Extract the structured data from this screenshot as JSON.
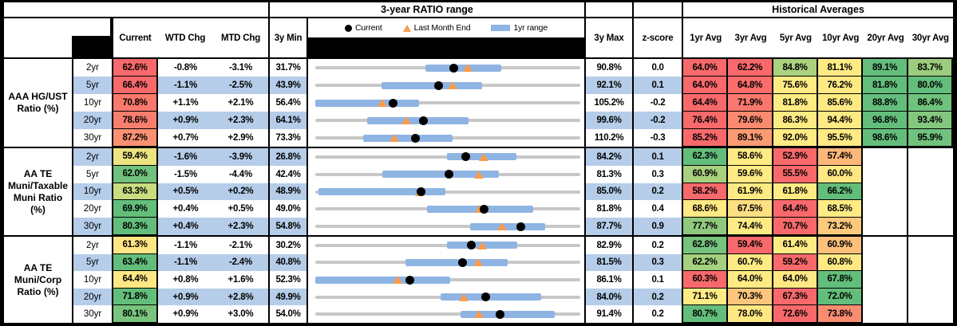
{
  "header": {
    "range_title": "3-year RATIO range",
    "hist_title": "Historical Averages",
    "col_current": "Current",
    "col_wtd": "WTD Chg",
    "col_mtd": "MTD Chg",
    "col_min": "3y Min",
    "col_max": "3y Max",
    "col_z": "z-score",
    "avg_cols": [
      "1yr Avg",
      "3yr Avg",
      "5yr Avg",
      "10yr Avg",
      "20yr Avg",
      "30yr Avg"
    ]
  },
  "legend": {
    "current": "Current",
    "last_month": "Last Month End",
    "range": "1yr range"
  },
  "colors": {
    "row_alt": "#B5CDE9",
    "row_plain": "#FFFFFF",
    "bar_1yr": "#8EB4E3",
    "track": "#C7C7C7",
    "triangle": "#F79C4F",
    "dot": "#000000",
    "scale_red": "#F8696B",
    "scale_yellow": "#FFEB84",
    "scale_green": "#63BE7B"
  },
  "chart_data": {
    "type": "bullet-range",
    "title": "3-year RATIO range",
    "legend": [
      "Current",
      "Last Month End",
      "1yr range"
    ],
    "x_unit": "ratio %",
    "axis_rule": "each row spans from its 3y Min to its 3y Max",
    "groups": [
      {
        "name": "AAA HG/UST Ratio (%)",
        "name_lines": [
          "AAA HG/UST",
          "Ratio (%)"
        ],
        "rows": [
          {
            "tenor": "2yr",
            "current": 62.6,
            "current_bg": "#F8696B",
            "wtd_chg": -0.8,
            "mtd_chg": -3.1,
            "min_3y": 31.7,
            "max_3y": 90.8,
            "z_score": 0.0,
            "last_month_end": 65.7,
            "range_1yr": [
              56.3,
              73.2
            ],
            "avgs": [
              64.0,
              62.2,
              84.8,
              81.1,
              89.1,
              83.7
            ],
            "avg_bgs": [
              "#F8696B",
              "#F8696B",
              "#ABD27F",
              "#FFEB84",
              "#63BE7B",
              "#9CCC7E"
            ]
          },
          {
            "tenor": "5yr",
            "current": 66.4,
            "current_bg": "#F8696B",
            "wtd_chg": -1.1,
            "mtd_chg": -2.5,
            "min_3y": 43.9,
            "max_3y": 92.1,
            "z_score": 0.1,
            "last_month_end": 68.9,
            "range_1yr": [
              56.0,
              74.3
            ],
            "avgs": [
              64.0,
              64.8,
              75.6,
              76.2,
              81.8,
              80.0
            ],
            "avg_bgs": [
              "#F8696B",
              "#F96D6C",
              "#FFEB84",
              "#FFE983",
              "#63BE7B",
              "#63BE7B"
            ]
          },
          {
            "tenor": "10yr",
            "current": 70.8,
            "current_bg": "#F9796D",
            "wtd_chg": 1.1,
            "mtd_chg": 2.1,
            "min_3y": 56.4,
            "max_3y": 105.2,
            "z_score": -0.2,
            "last_month_end": 68.7,
            "range_1yr": [
              56.4,
              75.5
            ],
            "avgs": [
              64.4,
              71.9,
              81.8,
              85.6,
              88.8,
              86.4
            ],
            "avg_bgs": [
              "#F8696B",
              "#F9786D",
              "#FFEB84",
              "#FFE983",
              "#63BE7B",
              "#6EC27C"
            ]
          },
          {
            "tenor": "20yr",
            "current": 78.6,
            "current_bg": "#F87E6E",
            "wtd_chg": 0.9,
            "mtd_chg": 2.3,
            "min_3y": 64.1,
            "max_3y": 99.6,
            "z_score": -0.2,
            "last_month_end": 76.3,
            "range_1yr": [
              71.1,
              84.6
            ],
            "avgs": [
              76.4,
              79.6,
              86.3,
              94.4,
              96.8,
              93.4
            ],
            "avg_bgs": [
              "#F8696B",
              "#FA8A70",
              "#FFEB84",
              "#FFE983",
              "#63BE7B",
              "#84C77E"
            ]
          },
          {
            "tenor": "30yr",
            "current": 87.2,
            "current_bg": "#FA9173",
            "wtd_chg": 0.7,
            "mtd_chg": 2.9,
            "min_3y": 73.3,
            "max_3y": 110.2,
            "z_score": -0.3,
            "last_month_end": 84.3,
            "range_1yr": [
              80.0,
              92.4
            ],
            "avgs": [
              85.2,
              89.1,
              92.0,
              95.5,
              98.6,
              95.9
            ],
            "avg_bgs": [
              "#F8696B",
              "#FB9B74",
              "#FFEB84",
              "#FFEA84",
              "#63BE7B",
              "#70C27C"
            ]
          }
        ]
      },
      {
        "name": "AA TE Muni/Taxable Muni Ratio (%)",
        "name_lines": [
          "AA TE",
          "Muni/Taxable",
          "Muni Ratio",
          "(%)"
        ],
        "rows": [
          {
            "tenor": "2yr",
            "current": 59.4,
            "current_bg": "#ECE481",
            "wtd_chg": -1.6,
            "mtd_chg": -3.9,
            "min_3y": 26.8,
            "max_3y": 84.2,
            "z_score": 0.1,
            "last_month_end": 63.3,
            "range_1yr": [
              55.3,
              70.3
            ],
            "avgs": [
              62.3,
              58.6,
              52.9,
              57.4,
              null,
              null
            ],
            "avg_bgs": [
              "#63BE7B",
              "#FFEB84",
              "#F8696B",
              "#FCB77A",
              null,
              null
            ]
          },
          {
            "tenor": "5yr",
            "current": 62.0,
            "current_bg": "#70C27C",
            "wtd_chg": -1.5,
            "mtd_chg": -4.4,
            "min_3y": 42.4,
            "max_3y": 81.3,
            "z_score": 0.3,
            "last_month_end": 66.4,
            "range_1yr": [
              52.2,
              69.4
            ],
            "avgs": [
              60.9,
              59.6,
              55.5,
              60.0,
              null,
              null
            ],
            "avg_bgs": [
              "#A8D17F",
              "#FFEB84",
              "#F8696B",
              "#FFE883",
              null,
              null
            ]
          },
          {
            "tenor": "10yr",
            "current": 63.3,
            "current_bg": "#C9DC80",
            "wtd_chg": 0.5,
            "mtd_chg": 0.2,
            "min_3y": 48.9,
            "max_3y": 85.0,
            "z_score": 0.2,
            "last_month_end": 63.1,
            "range_1yr": [
              49.3,
              66.6
            ],
            "avgs": [
              58.2,
              61.9,
              61.8,
              66.2,
              null,
              null
            ],
            "avg_bgs": [
              "#F8696B",
              "#FFEB84",
              "#FFEB84",
              "#63BE7B",
              null,
              null
            ]
          },
          {
            "tenor": "20yr",
            "current": 69.9,
            "current_bg": "#63BE7B",
            "wtd_chg": 0.4,
            "mtd_chg": 0.5,
            "min_3y": 49.0,
            "max_3y": 81.8,
            "z_score": 0.4,
            "last_month_end": 69.4,
            "range_1yr": [
              62.8,
              76.0
            ],
            "avgs": [
              68.6,
              67.5,
              64.4,
              68.5,
              null,
              null
            ],
            "avg_bgs": [
              "#FFE983",
              "#FEDF82",
              "#F8696B",
              "#FFEB84",
              null,
              null
            ]
          },
          {
            "tenor": "30yr",
            "current": 80.3,
            "current_bg": "#63BE7B",
            "wtd_chg": 0.4,
            "mtd_chg": 2.3,
            "min_3y": 54.8,
            "max_3y": 87.7,
            "z_score": 0.9,
            "last_month_end": 78.0,
            "range_1yr": [
              74.0,
              83.3
            ],
            "avgs": [
              77.7,
              74.4,
              70.7,
              73.2,
              null,
              null
            ],
            "avg_bgs": [
              "#8FC97E",
              "#FFEB84",
              "#F8696B",
              "#FDC97D",
              null,
              null
            ]
          }
        ]
      },
      {
        "name": "AA TE Muni/Corp Ratio (%)",
        "name_lines": [
          "AA TE",
          "Muni/Corp",
          "Ratio (%)"
        ],
        "rows": [
          {
            "tenor": "2yr",
            "current": 61.3,
            "current_bg": "#FFE684",
            "wtd_chg": -1.1,
            "mtd_chg": -2.1,
            "min_3y": 30.2,
            "max_3y": 82.9,
            "z_score": 0.2,
            "last_month_end": 63.4,
            "range_1yr": [
              56.4,
              70.4
            ],
            "avgs": [
              62.8,
              59.4,
              61.4,
              60.9,
              null,
              null
            ],
            "avg_bgs": [
              "#75C37D",
              "#F8696B",
              "#FFEB84",
              "#FDC07B",
              null,
              null
            ]
          },
          {
            "tenor": "5yr",
            "current": 63.4,
            "current_bg": "#63BE7B",
            "wtd_chg": -1.1,
            "mtd_chg": -2.4,
            "min_3y": 40.8,
            "max_3y": 81.5,
            "z_score": 0.3,
            "last_month_end": 65.8,
            "range_1yr": [
              54.6,
              70.3
            ],
            "avgs": [
              62.2,
              60.7,
              59.2,
              60.8,
              null,
              null
            ],
            "avg_bgs": [
              "#A4D07F",
              "#FFEB84",
              "#F8696B",
              "#FFE983",
              null,
              null
            ]
          },
          {
            "tenor": "10yr",
            "current": 64.4,
            "current_bg": "#FFE884",
            "wtd_chg": 0.8,
            "mtd_chg": 1.6,
            "min_3y": 52.3,
            "max_3y": 86.1,
            "z_score": 0.1,
            "last_month_end": 62.8,
            "range_1yr": [
              52.3,
              69.5
            ],
            "avgs": [
              60.3,
              64.0,
              64.0,
              67.8,
              null,
              null
            ],
            "avg_bgs": [
              "#F8696B",
              "#FFEB84",
              "#FFE883",
              "#63BE7B",
              null,
              null
            ]
          },
          {
            "tenor": "20yr",
            "current": 71.8,
            "current_bg": "#63BE7B",
            "wtd_chg": 0.9,
            "mtd_chg": 2.8,
            "min_3y": 49.9,
            "max_3y": 84.0,
            "z_score": 0.2,
            "last_month_end": 69.0,
            "range_1yr": [
              66.0,
              79.0
            ],
            "avgs": [
              71.1,
              70.3,
              67.3,
              72.0,
              null,
              null
            ],
            "avg_bgs": [
              "#FFEB84",
              "#FDC67C",
              "#F8696B",
              "#63BE7B",
              null,
              null
            ]
          },
          {
            "tenor": "30yr",
            "current": 80.1,
            "current_bg": "#79C47D",
            "wtd_chg": 0.9,
            "mtd_chg": 3.0,
            "min_3y": 54.0,
            "max_3y": 91.4,
            "z_score": 0.2,
            "last_month_end": 77.1,
            "range_1yr": [
              74.5,
              87.8
            ],
            "avgs": [
              80.7,
              78.0,
              72.6,
              73.8,
              null,
              null
            ],
            "avg_bgs": [
              "#63BE7B",
              "#FFE883",
              "#F8696B",
              "#F98C71",
              null,
              null
            ]
          }
        ]
      }
    ]
  }
}
